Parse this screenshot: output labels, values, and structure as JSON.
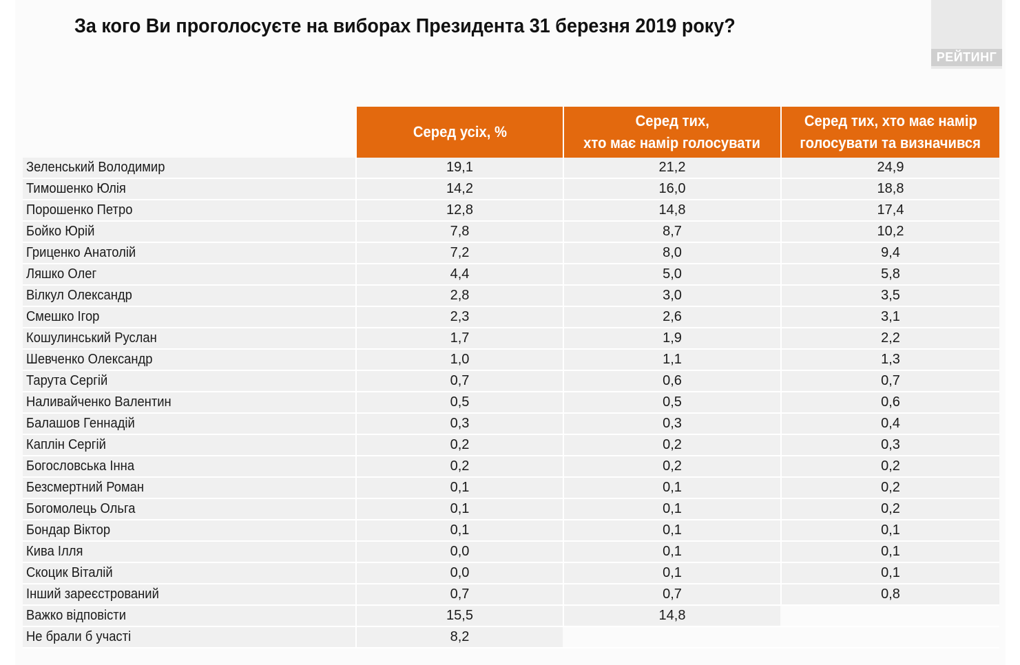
{
  "title": "За кого Ви проголосуєте на виборах Президента 31 березня 2019 року?",
  "logo_text": "РЕЙТИНГ",
  "colors": {
    "header_bg": "#e3690e",
    "header_text": "#ffffff",
    "row_bg": "#f0f0f0"
  },
  "chart_data": {
    "type": "table",
    "title": "За кого Ви проголосуєте на виборах Президента 31 березня 2019 року?",
    "columns": [
      [
        "Серед усіх, %"
      ],
      [
        "Серед тих,",
        "хто має намір голосувати"
      ],
      [
        "Серед тих, хто має намір",
        "голосувати та визначився"
      ]
    ],
    "rows": [
      {
        "name": "Зеленський Володимир",
        "values": [
          "19,1",
          "21,2",
          "24,9"
        ]
      },
      {
        "name": "Тимошенко Юлія",
        "values": [
          "14,2",
          "16,0",
          "18,8"
        ]
      },
      {
        "name": "Порошенко Петро",
        "values": [
          "12,8",
          "14,8",
          "17,4"
        ]
      },
      {
        "name": "Бойко Юрій",
        "values": [
          "7,8",
          "8,7",
          "10,2"
        ]
      },
      {
        "name": "Гриценко Анатолій",
        "values": [
          "7,2",
          "8,0",
          "9,4"
        ]
      },
      {
        "name": "Ляшко Олег",
        "values": [
          "4,4",
          "5,0",
          "5,8"
        ]
      },
      {
        "name": "Вілкул Олександр",
        "values": [
          "2,8",
          "3,0",
          "3,5"
        ]
      },
      {
        "name": "Смешко Ігор",
        "values": [
          "2,3",
          "2,6",
          "3,1"
        ]
      },
      {
        "name": "Кошулинський Руслан",
        "values": [
          "1,7",
          "1,9",
          "2,2"
        ]
      },
      {
        "name": "Шевченко Олександр",
        "values": [
          "1,0",
          "1,1",
          "1,3"
        ]
      },
      {
        "name": "Тарута Сергій",
        "values": [
          "0,7",
          "0,6",
          "0,7"
        ]
      },
      {
        "name": "Наливайченко Валентин",
        "values": [
          "0,5",
          "0,5",
          "0,6"
        ]
      },
      {
        "name": "Балашов Геннадій",
        "values": [
          "0,3",
          "0,3",
          "0,4"
        ]
      },
      {
        "name": "Каплін Сергій",
        "values": [
          "0,2",
          "0,2",
          "0,3"
        ]
      },
      {
        "name": "Богословська Інна",
        "values": [
          "0,2",
          "0,2",
          "0,2"
        ]
      },
      {
        "name": "Безсмертний Роман",
        "values": [
          "0,1",
          "0,1",
          "0,2"
        ]
      },
      {
        "name": "Богомолець Ольга",
        "values": [
          "0,1",
          "0,1",
          "0,2"
        ]
      },
      {
        "name": "Бондар Віктор",
        "values": [
          "0,1",
          "0,1",
          "0,1"
        ]
      },
      {
        "name": "Кива Ілля",
        "values": [
          "0,0",
          "0,1",
          "0,1"
        ]
      },
      {
        "name": "Скоцик Віталій",
        "values": [
          "0,0",
          "0,1",
          "0,1"
        ]
      },
      {
        "name": "Інший зареєстрований",
        "values": [
          "0,7",
          "0,7",
          "0,8"
        ]
      },
      {
        "name": "Важко відповісти",
        "values": [
          "15,5",
          "14,8",
          null
        ]
      },
      {
        "name": "Не брали б участі",
        "values": [
          "8,2",
          null,
          null
        ]
      }
    ]
  }
}
